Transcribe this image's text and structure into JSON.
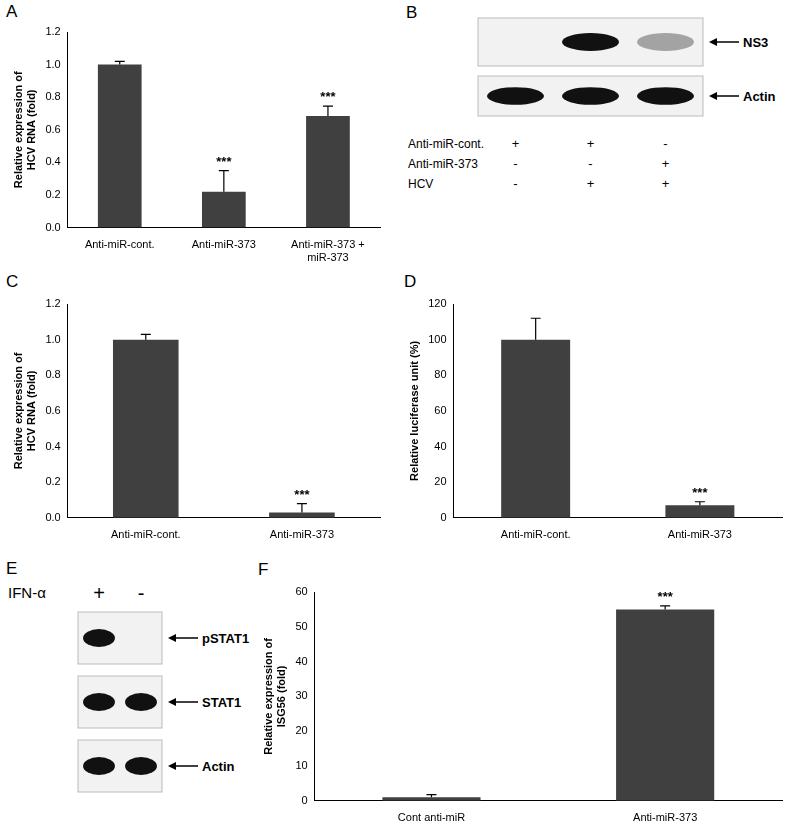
{
  "chart_data": [
    {
      "panel": "A",
      "type": "bar",
      "categories": [
        "Anti-miR-cont.",
        "Anti-miR-373",
        [
          "Anti-miR-373 +",
          "miR-373"
        ]
      ],
      "values": [
        1.0,
        0.22,
        0.685
      ],
      "errors": [
        0.02,
        0.13,
        0.06
      ],
      "annotations": [
        null,
        "***",
        "***"
      ],
      "y_label": [
        "Relative expression of",
        "HCV RNA (fold)"
      ],
      "color": "#404040",
      "ylim": [
        0,
        1.2
      ],
      "yticks": [
        {
          "value": 0,
          "label": "0.0"
        },
        0.2,
        0.4,
        0.6,
        0.8,
        {
          "value": 1,
          "label": "1.0"
        },
        1.2
      ],
      "grid": false
    },
    {
      "panel": "C",
      "type": "bar",
      "categories": [
        "Anti-miR-cont.",
        "Anti-miR-373"
      ],
      "values": [
        1.0,
        0.03
      ],
      "errors": [
        0.03,
        0.05
      ],
      "annotations": [
        null,
        "***"
      ],
      "y_label": [
        "Relative expression of",
        "HCV RNA (fold)"
      ],
      "color": "#404040",
      "ylim": [
        0,
        1.2
      ],
      "yticks": [
        {
          "value": 0,
          "label": "0.0"
        },
        0.2,
        0.4,
        0.6,
        0.8,
        {
          "value": 1,
          "label": "1.0"
        },
        1.2
      ],
      "grid": false
    },
    {
      "panel": "D",
      "type": "bar",
      "categories": [
        "Anti-miR-cont.",
        "Anti-miR-373"
      ],
      "values": [
        100,
        7
      ],
      "errors": [
        12,
        2
      ],
      "annotations": [
        null,
        "***"
      ],
      "y_label": "Relative luciferase unit (%)",
      "color": "#404040",
      "ylim": [
        0,
        120
      ],
      "yticks": [
        0,
        20,
        40,
        60,
        80,
        100,
        120
      ],
      "grid": false
    },
    {
      "panel": "F",
      "type": "bar",
      "categories": [
        "Cont anti-miR",
        "Anti-miR-373"
      ],
      "values": [
        1,
        55
      ],
      "errors": [
        0.8,
        1
      ],
      "annotations": [
        null,
        "***"
      ],
      "y_label": [
        "Relative expression of",
        "ISG56 (fold)"
      ],
      "color": "#404040",
      "ylim": [
        0,
        60
      ],
      "yticks": [
        0,
        10,
        20,
        30,
        40,
        50,
        60
      ],
      "grid": false
    }
  ],
  "blots": [
    {
      "panel": "B",
      "rows": [
        {
          "label": "NS3",
          "intensity": [
            0,
            1,
            0.35
          ]
        },
        {
          "label": "Actin",
          "intensity": [
            1,
            1,
            1
          ]
        }
      ],
      "conditions": [
        {
          "label": "Anti-miR-cont.",
          "signs": [
            "+",
            "+",
            "-"
          ]
        },
        {
          "label": "Anti-miR-373",
          "signs": [
            "-",
            "-",
            "+"
          ]
        },
        {
          "label": "HCV",
          "signs": [
            "-",
            "+",
            "+"
          ]
        }
      ]
    },
    {
      "panel": "E",
      "header": "IFN-α",
      "lane_labels": [
        "+",
        "-"
      ],
      "rows": [
        {
          "label": "pSTAT1",
          "intensity": [
            1,
            0
          ]
        },
        {
          "label": "STAT1",
          "intensity": [
            1,
            1
          ]
        },
        {
          "label": "Actin",
          "intensity": [
            1,
            1
          ]
        }
      ]
    }
  ]
}
